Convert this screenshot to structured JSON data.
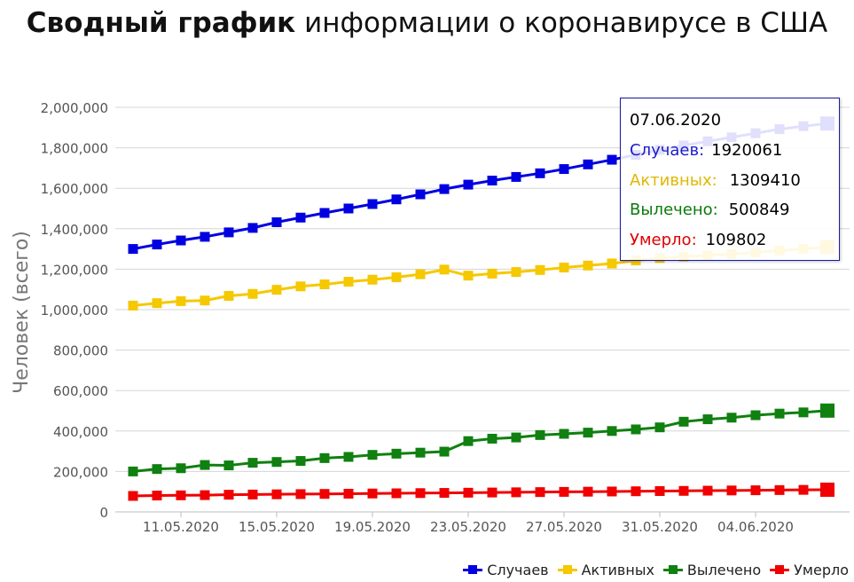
{
  "chart_data": {
    "type": "line",
    "title_bold": "Сводный график",
    "title_rest": " информации о коронавирусе в США",
    "ylabel": "Человек (всего)",
    "ylim": [
      0,
      2000000
    ],
    "yticks": [
      "2,000,000",
      "1,800,000",
      "1,600,000",
      "1,400,000",
      "1,200,000",
      "1,000,000",
      "800,000",
      "600,000",
      "400,000",
      "200,000",
      "0"
    ],
    "ytick_values": [
      2000000,
      1800000,
      1600000,
      1400000,
      1200000,
      1000000,
      800000,
      600000,
      400000,
      200000,
      0
    ],
    "xtick_labels": [
      "11.05.2020",
      "15.05.2020",
      "19.05.2020",
      "23.05.2020",
      "27.05.2020",
      "31.05.2020",
      "04.06.2020"
    ],
    "xtick_dates": [
      "2020-05-11",
      "2020-05-15",
      "2020-05-19",
      "2020-05-23",
      "2020-05-27",
      "2020-05-31",
      "2020-06-04"
    ],
    "x": [
      "2020-05-09",
      "2020-05-10",
      "2020-05-11",
      "2020-05-12",
      "2020-05-13",
      "2020-05-14",
      "2020-05-15",
      "2020-05-16",
      "2020-05-17",
      "2020-05-18",
      "2020-05-19",
      "2020-05-20",
      "2020-05-21",
      "2020-05-22",
      "2020-05-23",
      "2020-05-24",
      "2020-05-25",
      "2020-05-26",
      "2020-05-27",
      "2020-05-28",
      "2020-05-29",
      "2020-05-30",
      "2020-05-31",
      "2020-06-01",
      "2020-06-02",
      "2020-06-03",
      "2020-06-04",
      "2020-06-05",
      "2020-06-06",
      "2020-06-07"
    ],
    "grid": true,
    "legend_position": "bottom-right",
    "series": [
      {
        "name": "Случаев",
        "color": "#0000e0",
        "values": [
          1300000,
          1322000,
          1342000,
          1360000,
          1382000,
          1404000,
          1432000,
          1455000,
          1478000,
          1500000,
          1522000,
          1545000,
          1570000,
          1596000,
          1618000,
          1638000,
          1656000,
          1674000,
          1695000,
          1718000,
          1741000,
          1765000,
          1790000,
          1812000,
          1832000,
          1852000,
          1872000,
          1892000,
          1907000,
          1920061
        ]
      },
      {
        "name": "Активных",
        "color": "#f5c800",
        "values": [
          1020000,
          1032000,
          1042000,
          1045000,
          1068000,
          1078000,
          1098000,
          1115000,
          1125000,
          1138000,
          1148000,
          1160000,
          1175000,
          1198000,
          1168000,
          1178000,
          1186000,
          1196000,
          1208000,
          1218000,
          1228000,
          1243000,
          1255000,
          1262000,
          1268000,
          1275000,
          1283000,
          1292000,
          1300000,
          1309410
        ]
      },
      {
        "name": "Вылечено",
        "color": "#108010",
        "values": [
          200000,
          212000,
          216000,
          232000,
          230000,
          243000,
          247000,
          252000,
          266000,
          272000,
          282000,
          288000,
          293000,
          298000,
          350000,
          362000,
          368000,
          380000,
          386000,
          392000,
          400000,
          408000,
          418000,
          446000,
          458000,
          466000,
          478000,
          486000,
          492000,
          500849
        ]
      },
      {
        "name": "Умерло",
        "color": "#f00000",
        "values": [
          79000,
          81000,
          82000,
          83000,
          85000,
          86000,
          87000,
          88000,
          89000,
          90000,
          91000,
          92000,
          93000,
          94000,
          95000,
          96000,
          97000,
          98000,
          99000,
          100000,
          101000,
          102000,
          103000,
          104000,
          105000,
          106000,
          107000,
          108000,
          109000,
          109802
        ]
      }
    ],
    "tooltip": {
      "date": "07.06.2020",
      "rows": [
        {
          "label": "Случаев:",
          "value": "1920061",
          "color": "#1c1ccc"
        },
        {
          "label": "Активных:",
          "value": "1309410",
          "color": "#e0b800"
        },
        {
          "label": "Вылечено:",
          "value": "500849",
          "color": "#0c7a0c"
        },
        {
          "label": "Умерло:",
          "value": "109802",
          "color": "#e00000"
        }
      ]
    }
  }
}
